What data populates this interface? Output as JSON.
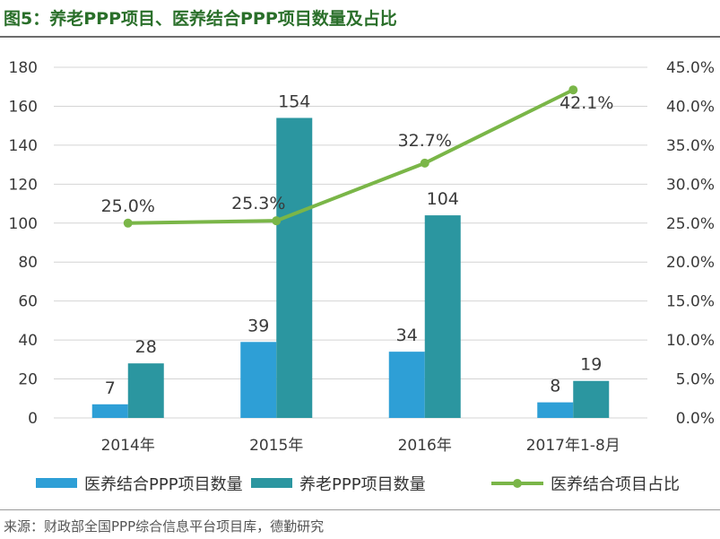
{
  "title": "图5：养老PPP项目、医养结合PPP项目数量及占比",
  "source": "来源：财政部全国PPP综合信息平台项目库，德勤研究",
  "chart_data": {
    "type": "bar",
    "categories": [
      "2014年",
      "2015年",
      "2016年",
      "2017年1-8月"
    ],
    "series": [
      {
        "name": "医养结合PPP项目数量",
        "type": "bar",
        "axis": "left",
        "color": "#2e9fd6",
        "values": [
          7,
          39,
          34,
          8
        ],
        "labels": [
          "7",
          "39",
          "34",
          "8"
        ]
      },
      {
        "name": "养老PPP项目数量",
        "type": "bar",
        "axis": "left",
        "color": "#2b96a0",
        "values": [
          28,
          154,
          104,
          19
        ],
        "labels": [
          "28",
          "154",
          "104",
          "19"
        ]
      },
      {
        "name": "医养结合项目占比",
        "type": "line",
        "axis": "right",
        "color": "#7ab648",
        "values": [
          25.0,
          25.3,
          32.7,
          42.1
        ],
        "labels": [
          "25.0%",
          "25.3%",
          "32.7%",
          "42.1%"
        ]
      }
    ],
    "y_left": {
      "lim": [
        0,
        180
      ],
      "ticks": [
        "0",
        "20",
        "40",
        "60",
        "80",
        "100",
        "120",
        "140",
        "160",
        "180"
      ]
    },
    "y_right": {
      "lim": [
        0,
        45
      ],
      "ticks": [
        "0.0%",
        "5.0%",
        "10.0%",
        "15.0%",
        "20.0%",
        "25.0%",
        "30.0%",
        "35.0%",
        "40.0%",
        "45.0%"
      ]
    },
    "grid": true,
    "legend_position": "bottom"
  }
}
